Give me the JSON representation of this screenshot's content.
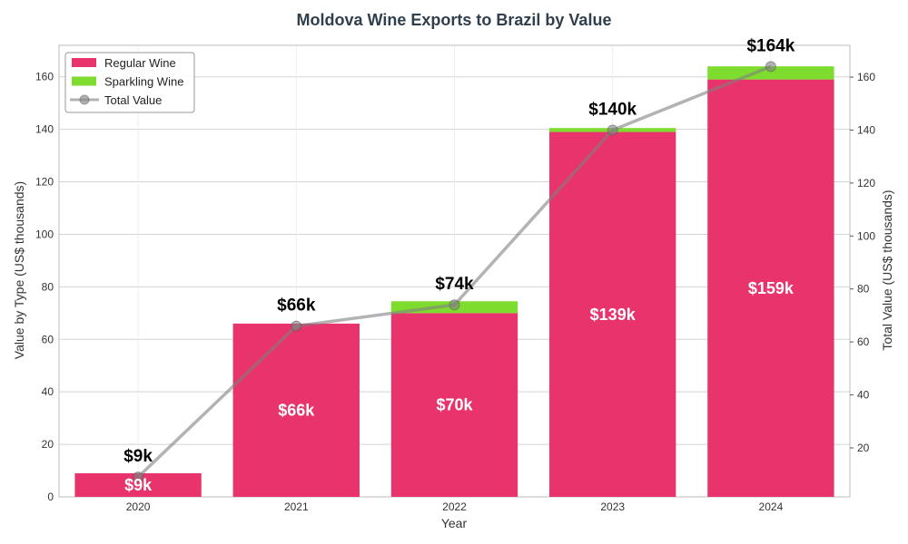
{
  "chart_data": {
    "type": "bar",
    "title": "Moldova Wine Exports to Brazil by Value",
    "xlabel": "Year",
    "ylabel_left": "Value by Type (US$ thousands)",
    "ylabel_right": "Total Value (US$ thousands)",
    "categories": [
      "2020",
      "2021",
      "2022",
      "2023",
      "2024"
    ],
    "stacked": true,
    "series": [
      {
        "name": "Regular Wine",
        "kind": "bar",
        "color": "#e8336d",
        "values": [
          9,
          66,
          70,
          139,
          159
        ],
        "labels": [
          "$9k",
          "$66k",
          "$70k",
          "$139k",
          "$159k"
        ]
      },
      {
        "name": "Sparkling Wine",
        "kind": "bar",
        "color": "#7ddc2e",
        "values": [
          0,
          0,
          4.5,
          1.5,
          5
        ],
        "labels": []
      },
      {
        "name": "Total Value",
        "kind": "line",
        "axis": "right",
        "color": "#808080",
        "values": [
          9,
          66,
          74,
          140,
          164
        ],
        "labels": [
          "$9k",
          "$66k",
          "$74k",
          "$140k",
          "$164k"
        ]
      }
    ],
    "left_axis": {
      "ylim": [
        0,
        172
      ],
      "ticks": [
        0,
        20,
        40,
        60,
        80,
        100,
        120,
        140,
        160
      ]
    },
    "right_axis": {
      "ylim": [
        1.5,
        172
      ],
      "ticks": [
        20,
        40,
        60,
        80,
        100,
        120,
        140,
        160
      ]
    },
    "grid": true,
    "legend_position": "top-left"
  }
}
